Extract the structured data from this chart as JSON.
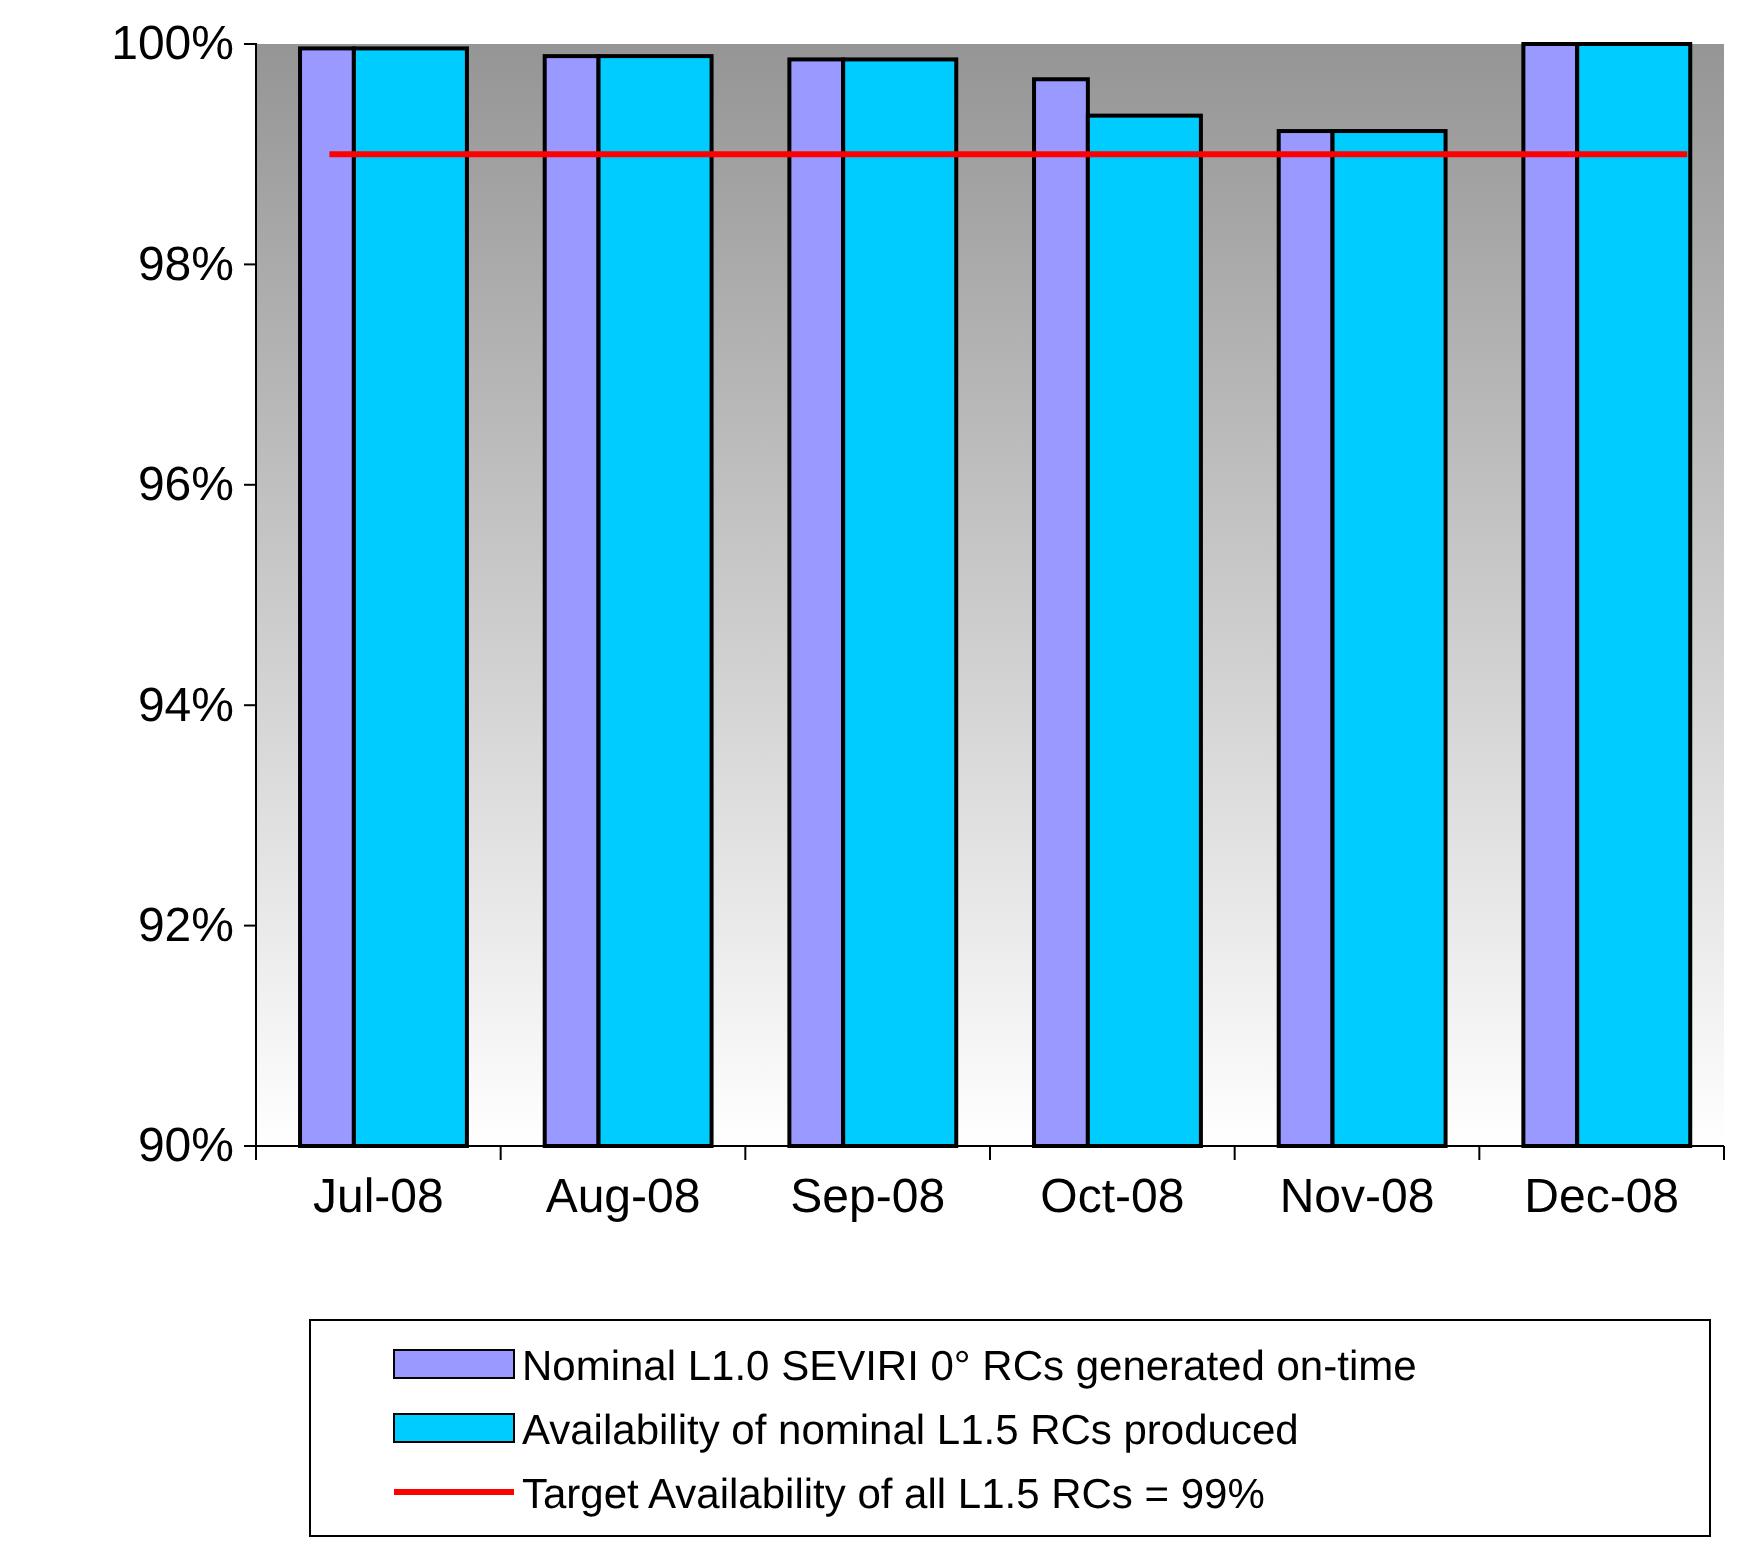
{
  "chart_data": {
    "type": "bar",
    "categories": [
      "Jul-08",
      "Aug-08",
      "Sep-08",
      "Oct-08",
      "Nov-08",
      "Dec-08"
    ],
    "series": [
      {
        "name": "Nominal L1.0 SEVIRI 0° RCs generated on-time",
        "color": "#9999ff",
        "values": [
          99.96,
          99.89,
          99.86,
          99.68,
          99.21,
          100
        ]
      },
      {
        "name": "Availability of nominal L1.5 RCs produced",
        "color": "#00ccff",
        "values": [
          99.96,
          99.89,
          99.86,
          99.35,
          99.21,
          100
        ]
      }
    ],
    "ylim": [
      90,
      100
    ],
    "yticks": [
      {
        "value": 90,
        "label": "90%"
      },
      {
        "value": 92,
        "label": "92%"
      },
      {
        "value": 94,
        "label": "94%"
      },
      {
        "value": 96,
        "label": "96%"
      },
      {
        "value": 98,
        "label": "98%"
      },
      {
        "value": 100,
        "label": "100%"
      }
    ],
    "ref_lines": [
      {
        "axis": "y",
        "value": 99,
        "label": "Target Availability of all L1.5 RCs = 99%",
        "color": "#ff0000"
      }
    ],
    "legend": "bottom"
  }
}
